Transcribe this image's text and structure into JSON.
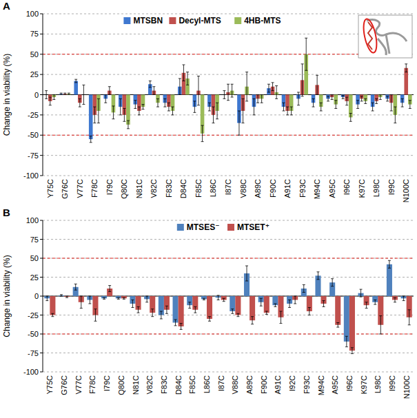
{
  "chart_data": [
    {
      "type": "bar",
      "panel_label": "A",
      "y_label": "Change in viability (%)",
      "categories": [
        "Y75C",
        "G76C",
        "V77C",
        "F78C",
        "I79C",
        "Q80C",
        "N81C",
        "V82C",
        "F83C",
        "D84C",
        "F85C",
        "L86C",
        "I87C",
        "V88C",
        "A89C",
        "F90C",
        "A91C",
        "F93C",
        "M94C",
        "A95C",
        "I96C",
        "K97C",
        "L98C",
        "I99C",
        "N100C"
      ],
      "series": [
        {
          "name": "MTSBN",
          "color": "#3f78d0",
          "values": [
            0,
            1,
            17,
            -55,
            -5,
            -15,
            -12,
            13,
            -10,
            10,
            -15,
            -15,
            0,
            -35,
            -15,
            8,
            -15,
            -5,
            -10,
            -5,
            -3,
            -12,
            -15,
            -5,
            -10
          ],
          "errors": [
            5,
            1,
            2,
            4,
            5,
            10,
            5,
            4,
            5,
            10,
            7,
            5,
            5,
            15,
            10,
            5,
            5,
            8,
            5,
            3,
            2,
            5,
            5,
            3,
            5
          ]
        },
        {
          "name": "Decyl-MTS",
          "color": "#c0504d",
          "values": [
            -8,
            1,
            -10,
            -25,
            5,
            -25,
            -20,
            5,
            -15,
            27,
            5,
            -25,
            3,
            -20,
            -5,
            10,
            -20,
            18,
            12,
            -3,
            -8,
            -5,
            -8,
            -10,
            33
          ],
          "errors": [
            5,
            1,
            5,
            10,
            5,
            8,
            5,
            5,
            5,
            10,
            18,
            10,
            10,
            15,
            5,
            5,
            5,
            20,
            12,
            3,
            5,
            3,
            3,
            10,
            5
          ]
        },
        {
          "name": "4HB-MTS",
          "color": "#9bbb59",
          "values": [
            -3,
            1,
            0,
            -20,
            -22,
            -37,
            -15,
            -10,
            -20,
            20,
            -48,
            -20,
            5,
            10,
            -5,
            3,
            -20,
            50,
            -15,
            -12,
            -28,
            -8,
            -3,
            -25,
            -12
          ],
          "errors": [
            3,
            1,
            12,
            15,
            8,
            5,
            3,
            5,
            5,
            8,
            10,
            10,
            8,
            18,
            5,
            8,
            5,
            20,
            5,
            5,
            5,
            3,
            3,
            10,
            5
          ]
        }
      ],
      "ylim": [
        -100,
        100
      ],
      "yticks": [
        -100,
        -75,
        -50,
        -25,
        0,
        25,
        50,
        75,
        100
      ],
      "grid": true,
      "threshold_lines": [
        -50,
        50
      ],
      "legend": "top"
    },
    {
      "type": "bar",
      "panel_label": "B",
      "y_label": "Change in viability (%)",
      "categories": [
        "Y75C",
        "G76C",
        "V77C",
        "F78C",
        "I79C",
        "Q80C",
        "N81C",
        "V82C",
        "F83C",
        "D84C",
        "F85C",
        "L86C",
        "I87C",
        "V88C",
        "A89C",
        "F90C",
        "A91C",
        "I92C",
        "F93C",
        "M94C",
        "A95C",
        "I96C",
        "K97C",
        "L98C",
        "I99C",
        "N100C"
      ],
      "series": [
        {
          "name": "MTSES⁻",
          "color": "#4f81bd",
          "values": [
            -3,
            1,
            12,
            -5,
            -3,
            -3,
            -10,
            -4,
            -25,
            -35,
            -12,
            -4,
            -2,
            -20,
            30,
            -8,
            -12,
            -10,
            10,
            27,
            18,
            -60,
            4,
            -8,
            42,
            -3
          ],
          "errors": [
            3,
            1,
            4,
            5,
            1,
            1,
            5,
            4,
            5,
            4,
            4,
            1,
            3,
            3,
            10,
            5,
            2,
            5,
            5,
            5,
            5,
            7,
            5,
            3,
            5,
            3
          ]
        },
        {
          "name": "MTSET⁺",
          "color": "#c0504d",
          "values": [
            -25,
            -1,
            -8,
            -25,
            10,
            -3,
            -18,
            -22,
            -18,
            -40,
            -18,
            -30,
            -5,
            -25,
            -32,
            -22,
            -28,
            -5,
            -20,
            -10,
            -38,
            -72,
            -12,
            -38,
            -5,
            -28
          ],
          "errors": [
            2,
            1,
            8,
            8,
            4,
            1,
            4,
            5,
            5,
            4,
            4,
            3,
            2,
            2,
            5,
            2,
            8,
            5,
            5,
            4,
            3,
            4,
            4,
            12,
            3,
            10
          ]
        }
      ],
      "ylim": [
        -100,
        100
      ],
      "yticks": [
        -100,
        -75,
        -50,
        -25,
        0,
        25,
        50,
        75,
        100
      ],
      "grid": true,
      "threshold_lines": [
        -50,
        50
      ],
      "legend": "top"
    }
  ]
}
